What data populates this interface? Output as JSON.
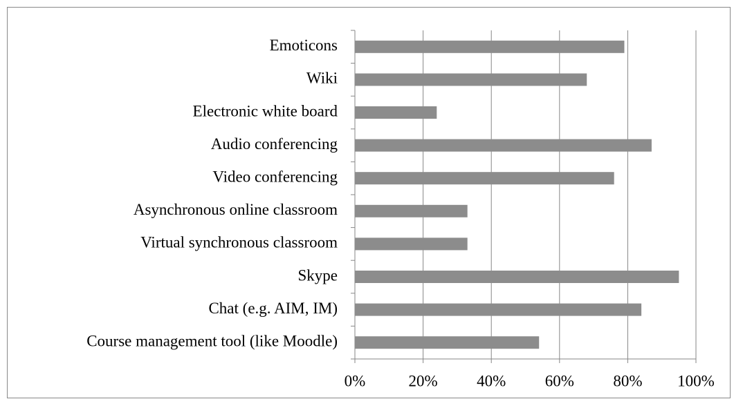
{
  "chart_data": {
    "type": "barh",
    "categories": [
      "Emoticons",
      "Wiki",
      "Electronic white board",
      "Audio conferencing",
      "Video conferencing",
      "Asynchronous online classroom",
      "Virtual synchronous classroom",
      "Skype",
      "Chat (e.g. AIM, IM)",
      "Course management tool (like Moodle)"
    ],
    "values": [
      79,
      68,
      24,
      87,
      76,
      33,
      33,
      95,
      84,
      54
    ],
    "color": "#8c8c8c",
    "xlim": [
      0,
      100
    ],
    "xticks": [
      {
        "value": 0,
        "label": "0%"
      },
      {
        "value": 20,
        "label": "20%"
      },
      {
        "value": 40,
        "label": "40%"
      },
      {
        "value": 60,
        "label": "60%"
      },
      {
        "value": 80,
        "label": "80%"
      },
      {
        "value": 100,
        "label": "100%"
      }
    ],
    "grid": true
  }
}
